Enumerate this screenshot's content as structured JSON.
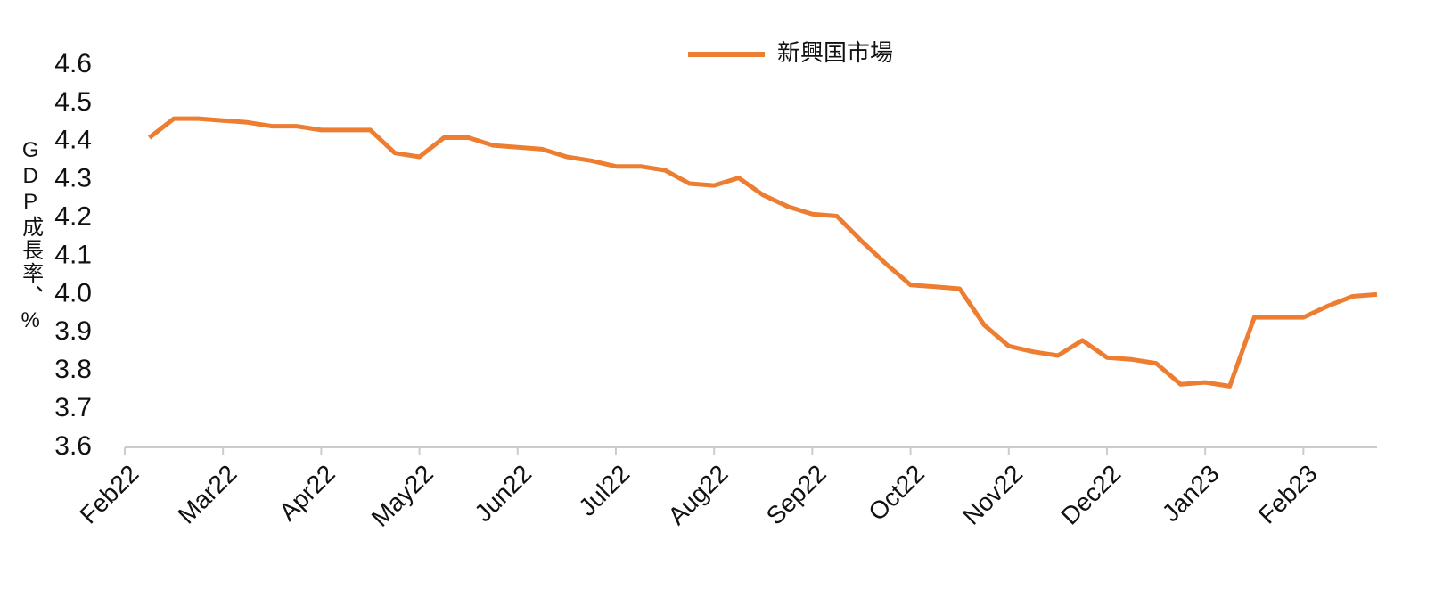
{
  "chart_data": {
    "type": "line",
    "y_label": "GDP成長率、%",
    "categories": [
      "Feb22",
      null,
      null,
      null,
      "Mar22",
      null,
      null,
      null,
      "Apr22",
      null,
      null,
      null,
      "May22",
      null,
      null,
      null,
      "Jun22",
      null,
      null,
      null,
      "Jul22",
      null,
      null,
      null,
      "Aug22",
      null,
      null,
      null,
      "Sep22",
      null,
      null,
      null,
      "Oct22",
      null,
      null,
      null,
      "Nov22",
      null,
      null,
      null,
      "Dec22",
      null,
      null,
      null,
      "Jan23",
      null,
      null,
      null,
      "Feb23",
      null,
      null,
      null
    ],
    "series": [
      {
        "name": "新興国市場",
        "color": "#ed7d31",
        "values": [
          null,
          4.41,
          4.46,
          4.46,
          4.455,
          4.45,
          4.44,
          4.44,
          4.43,
          4.43,
          4.43,
          4.37,
          4.36,
          4.41,
          4.41,
          4.39,
          4.385,
          4.38,
          4.36,
          4.35,
          4.335,
          4.335,
          4.325,
          4.29,
          4.285,
          4.305,
          4.26,
          4.23,
          4.21,
          4.205,
          4.14,
          4.08,
          4.025,
          4.02,
          4.015,
          3.92,
          3.865,
          3.85,
          3.84,
          3.88,
          3.835,
          3.83,
          3.82,
          3.765,
          3.77,
          3.76,
          3.94,
          3.94,
          3.94,
          3.97,
          3.995,
          4.0
        ]
      }
    ],
    "ylim": [
      3.6,
      4.6
    ],
    "yticks": [
      3.6,
      3.7,
      3.8,
      3.9,
      {
        "value": 4,
        "label": "4.0"
      },
      4.1,
      4.2,
      4.3,
      4.4,
      4.5,
      4.6
    ],
    "grid": false,
    "legend": "top"
  }
}
